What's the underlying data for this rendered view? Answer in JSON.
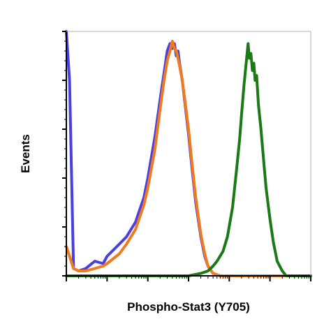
{
  "chart_data": {
    "type": "line",
    "title": "",
    "xlabel": "Phospho-Stat3 (Y705)",
    "ylabel": "Events",
    "x_scale": "log",
    "xlim": [
      0.1,
      100000
    ],
    "ylim": [
      0,
      100
    ],
    "grid": false,
    "legend": "none",
    "series": [
      {
        "color": "#4a3fe0",
        "points": [
          [
            0.1,
            100
          ],
          [
            0.12,
            80
          ],
          [
            0.15,
            3
          ],
          [
            0.2,
            2
          ],
          [
            0.3,
            3
          ],
          [
            0.5,
            6
          ],
          [
            0.8,
            5
          ],
          [
            1,
            8
          ],
          [
            2,
            13
          ],
          [
            3,
            16
          ],
          [
            5,
            22
          ],
          [
            8,
            32
          ],
          [
            10,
            40
          ],
          [
            15,
            57
          ],
          [
            20,
            72
          ],
          [
            25,
            83
          ],
          [
            30,
            92
          ],
          [
            35,
            95
          ],
          [
            40,
            93
          ],
          [
            45,
            95
          ],
          [
            50,
            90
          ],
          [
            55,
            92
          ],
          [
            60,
            87
          ],
          [
            70,
            80
          ],
          [
            80,
            72
          ],
          [
            100,
            58
          ],
          [
            120,
            45
          ],
          [
            150,
            30
          ],
          [
            200,
            16
          ],
          [
            250,
            8
          ],
          [
            300,
            4
          ],
          [
            400,
            1
          ],
          [
            600,
            0
          ],
          [
            1000,
            0
          ],
          [
            100000,
            0
          ]
        ]
      },
      {
        "color": "#f07a1e",
        "points": [
          [
            0.1,
            12
          ],
          [
            0.12,
            8
          ],
          [
            0.15,
            3
          ],
          [
            0.2,
            2
          ],
          [
            0.3,
            2
          ],
          [
            0.5,
            3
          ],
          [
            0.8,
            4
          ],
          [
            1,
            5
          ],
          [
            2,
            9
          ],
          [
            3,
            13
          ],
          [
            5,
            19
          ],
          [
            8,
            29
          ],
          [
            10,
            36
          ],
          [
            15,
            52
          ],
          [
            20,
            68
          ],
          [
            25,
            80
          ],
          [
            30,
            88
          ],
          [
            35,
            92
          ],
          [
            40,
            96
          ],
          [
            45,
            93
          ],
          [
            50,
            92
          ],
          [
            55,
            89
          ],
          [
            60,
            86
          ],
          [
            70,
            80
          ],
          [
            80,
            73
          ],
          [
            100,
            60
          ],
          [
            120,
            47
          ],
          [
            150,
            32
          ],
          [
            200,
            17
          ],
          [
            250,
            9
          ],
          [
            300,
            4
          ],
          [
            400,
            1
          ],
          [
            600,
            0
          ],
          [
            1000,
            0
          ],
          [
            100000,
            0
          ]
        ]
      },
      {
        "color": "#1a7a14",
        "points": [
          [
            0.1,
            0
          ],
          [
            50,
            0
          ],
          [
            100,
            0
          ],
          [
            200,
            1
          ],
          [
            300,
            2
          ],
          [
            400,
            4
          ],
          [
            500,
            6
          ],
          [
            700,
            10
          ],
          [
            900,
            16
          ],
          [
            1200,
            28
          ],
          [
            1500,
            43
          ],
          [
            1800,
            56
          ],
          [
            2000,
            66
          ],
          [
            2300,
            78
          ],
          [
            2600,
            87
          ],
          [
            2900,
            95
          ],
          [
            3100,
            89
          ],
          [
            3400,
            91
          ],
          [
            3700,
            84
          ],
          [
            4000,
            87
          ],
          [
            4300,
            80
          ],
          [
            4700,
            82
          ],
          [
            5200,
            70
          ],
          [
            6000,
            60
          ],
          [
            7000,
            47
          ],
          [
            8000,
            36
          ],
          [
            10000,
            23
          ],
          [
            12000,
            14
          ],
          [
            15000,
            6
          ],
          [
            20000,
            2
          ],
          [
            25000,
            0
          ],
          [
            100000,
            0
          ]
        ]
      }
    ]
  }
}
